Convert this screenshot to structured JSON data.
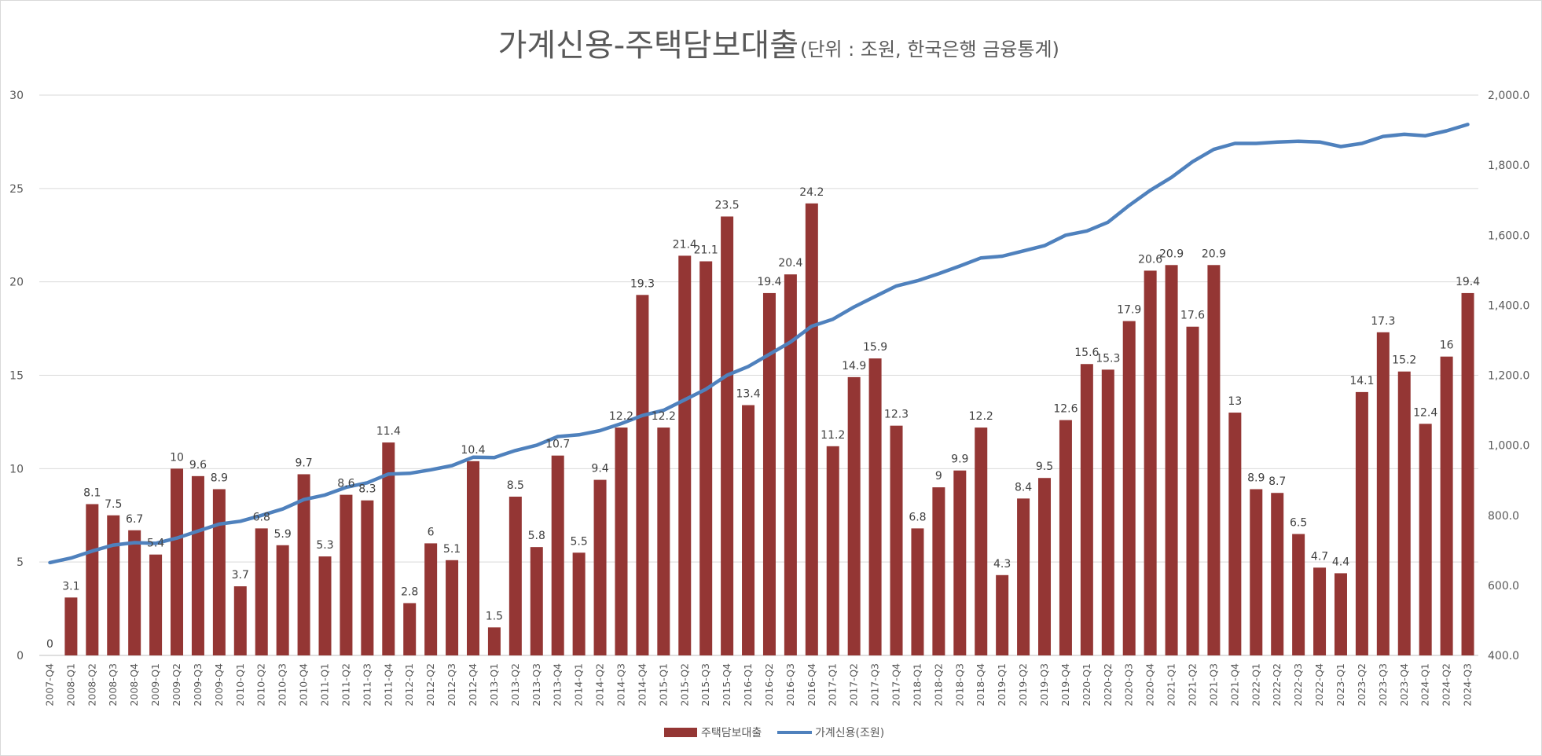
{
  "chart_data": {
    "type": "bar",
    "title": "가계신용-주택담보대출",
    "subtitle": "(단위 : 조원, 한국은행 금융통계)",
    "categories": [
      "2007-Q4",
      "2008-Q1",
      "2008-Q2",
      "2008-Q3",
      "2008-Q4",
      "2009-Q1",
      "2009-Q2",
      "2009-Q3",
      "2009-Q4",
      "2010-Q1",
      "2010-Q2",
      "2010-Q3",
      "2010-Q4",
      "2011-Q1",
      "2011-Q2",
      "2011-Q3",
      "2011-Q4",
      "2012-Q1",
      "2012-Q2",
      "2012-Q3",
      "2012-Q4",
      "2013-Q1",
      "2013-Q2",
      "2013-Q3",
      "2013-Q4",
      "2014-Q1",
      "2014-Q2",
      "2014-Q3",
      "2014-Q4",
      "2015-Q1",
      "2015-Q2",
      "2015-Q3",
      "2015-Q4",
      "2016-Q1",
      "2016-Q2",
      "2016-Q3",
      "2016-Q4",
      "2017-Q1",
      "2017-Q2",
      "2017-Q3",
      "2017-Q4",
      "2018-Q1",
      "2018-Q2",
      "2018-Q3",
      "2018-Q4",
      "2019-Q1",
      "2019-Q2",
      "2019-Q3",
      "2019-Q4",
      "2020-Q1",
      "2020-Q2",
      "2020-Q3",
      "2020-Q4",
      "2021-Q1",
      "2021-Q2",
      "2021-Q3",
      "2021-Q4",
      "2022-Q1",
      "2022-Q2",
      "2022-Q3",
      "2022-Q4",
      "2023-Q1",
      "2023-Q2",
      "2023-Q3",
      "2023-Q4",
      "2024-Q1",
      "2024-Q2",
      "2024-Q3"
    ],
    "series": [
      {
        "name": "주택담보대출",
        "kind": "bar",
        "axis": "left",
        "color": "#943634",
        "values": [
          0,
          3.1,
          8.1,
          7.5,
          6.7,
          5.4,
          10,
          9.6,
          8.9,
          3.7,
          6.8,
          5.9,
          9.7,
          5.3,
          8.6,
          8.3,
          11.4,
          2.8,
          6,
          5.1,
          10.4,
          1.5,
          8.5,
          5.8,
          10.7,
          5.5,
          9.4,
          12.2,
          19.3,
          12.2,
          21.4,
          21.1,
          23.5,
          13.4,
          19.4,
          20.4,
          24.2,
          11.2,
          14.9,
          15.9,
          12.3,
          6.8,
          9,
          9.9,
          12.2,
          4.3,
          8.4,
          9.5,
          12.6,
          15.6,
          15.3,
          17.9,
          20.6,
          20.9,
          17.6,
          20.9,
          13,
          8.9,
          8.7,
          6.5,
          4.7,
          4.4,
          14.1,
          17.3,
          15.2,
          12.4,
          16,
          19.4
        ],
        "labels": [
          "0",
          "3.1",
          "8.1",
          "7.5",
          "6.7",
          "5.4",
          "10",
          "9.6",
          "8.9",
          "3.7",
          "6.8",
          "5.9",
          "9.7",
          "5.3",
          "8.6",
          "8.3",
          "11.4",
          "2.8",
          "6",
          "5.1",
          "10.4",
          "1.5",
          "8.5",
          "5.8",
          "10.7",
          "5.5",
          "9.4",
          "12.2",
          "19.3",
          "12.2",
          "21.4",
          "21.1",
          "23.5",
          "13.4",
          "19.4",
          "20.4",
          "24.2",
          "11.2",
          "14.9",
          "15.9",
          "12.3",
          "6.8",
          "9",
          "9.9",
          "12.2",
          "4.3",
          "8.4",
          "9.5",
          "12.6",
          "15.6",
          "15.3",
          "17.9",
          "20.6",
          "20.9",
          "17.6",
          "20.9",
          "13",
          "8.9",
          "8.7",
          "6.5",
          "4.7",
          "4.4",
          "14.1",
          "17.3",
          "15.2",
          "12.4",
          "16",
          "19.4"
        ]
      },
      {
        "name": "가계신용(조원)",
        "kind": "line",
        "axis": "right",
        "color": "#4f81bd",
        "values": [
          665,
          678,
          698,
          715,
          722,
          720,
          735,
          755,
          775,
          783,
          800,
          818,
          845,
          858,
          880,
          893,
          918,
          920,
          930,
          942,
          966,
          965,
          985,
          1000,
          1025,
          1030,
          1042,
          1062,
          1085,
          1100,
          1130,
          1160,
          1200,
          1225,
          1260,
          1295,
          1340,
          1360,
          1395,
          1425,
          1455,
          1470,
          1490,
          1512,
          1535,
          1540,
          1555,
          1570,
          1600,
          1612,
          1637,
          1685,
          1728,
          1765,
          1810,
          1845,
          1862,
          1862,
          1866,
          1868,
          1866,
          1853,
          1862,
          1882,
          1888,
          1884,
          1898,
          1916
        ]
      }
    ],
    "y_left": {
      "min": 0,
      "max": 30,
      "ticks": [
        "0",
        "5",
        "10",
        "15",
        "20",
        "25",
        "30"
      ]
    },
    "y_right": {
      "min": 400,
      "max": 2000,
      "ticks": [
        "400.0",
        "600.0",
        "800.0",
        "1,000.0",
        "1,200.0",
        "1,400.0",
        "1,600.0",
        "1,800.0",
        "2,000.0"
      ]
    },
    "grid": true,
    "legend": "bottom"
  }
}
